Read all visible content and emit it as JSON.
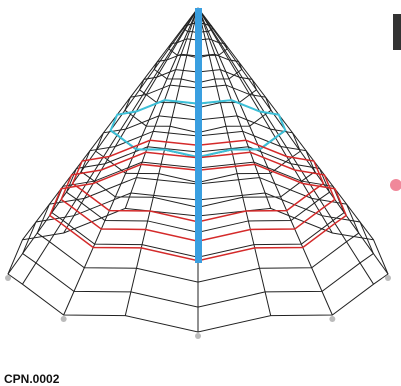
{
  "caption": "CPN.0002"
}
